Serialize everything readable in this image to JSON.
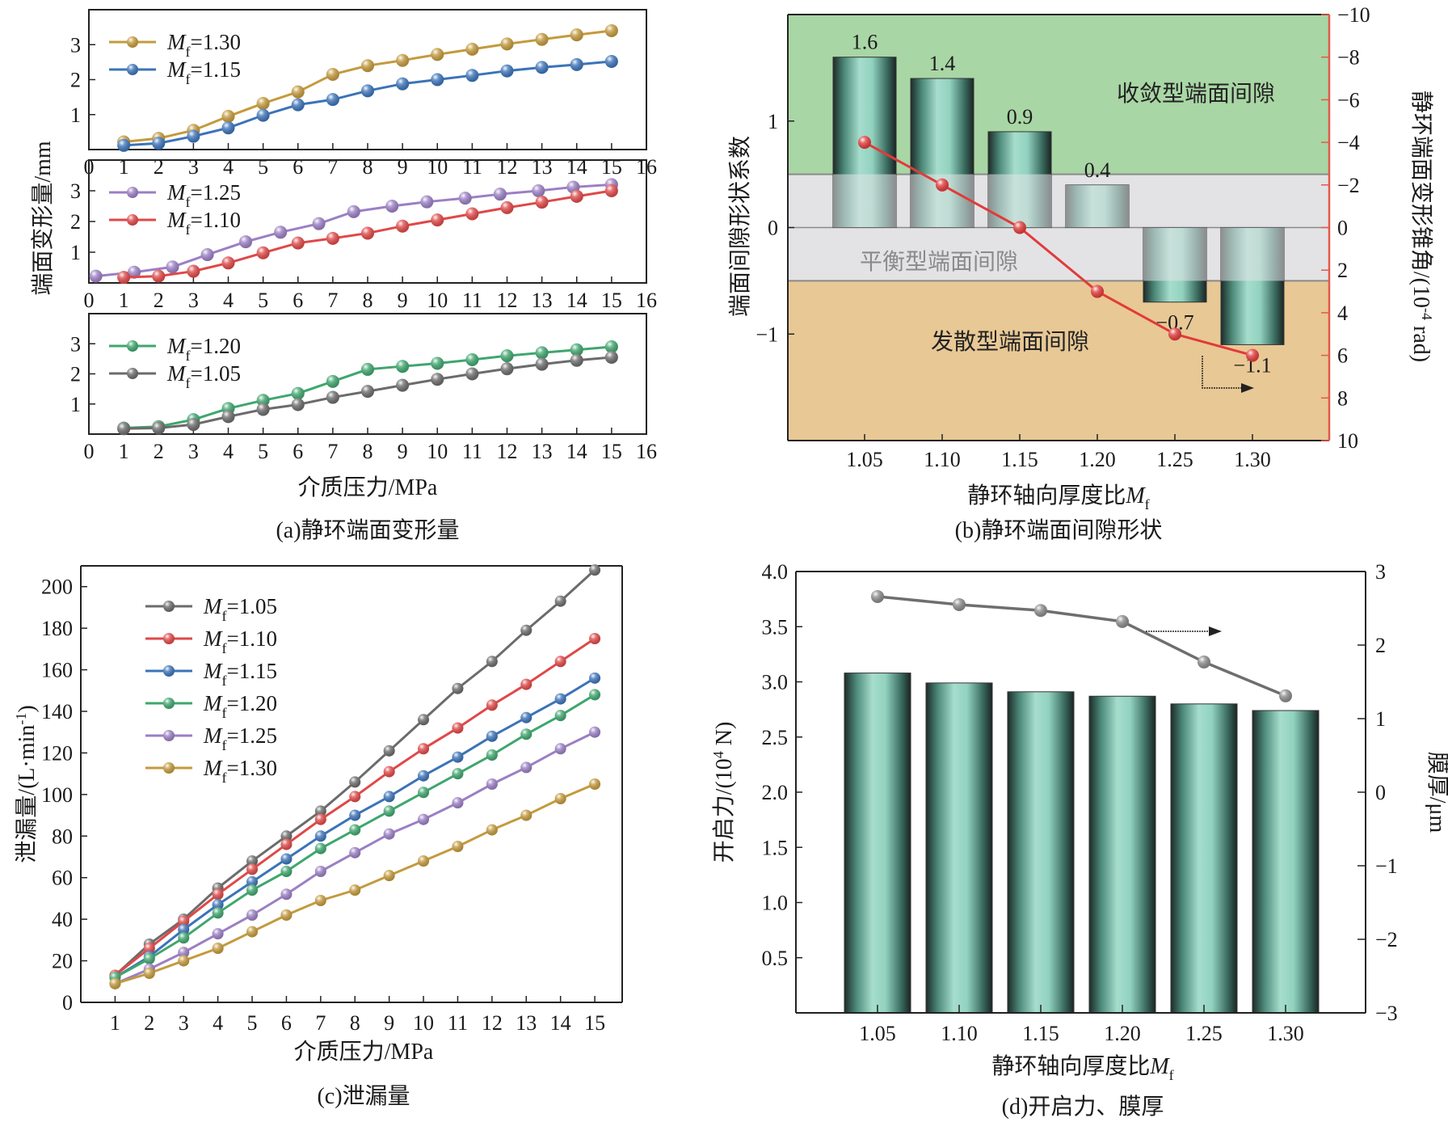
{
  "chart_data": [
    {
      "id": "a",
      "type": "line",
      "caption": "(a)静环端面变形量",
      "xlabel": "介质压力/MPa",
      "ylabel": "端面变形量/mm",
      "subplots": [
        {
          "xlim": [
            0,
            16
          ],
          "ylim": [
            0,
            4
          ],
          "xticks": [
            0,
            1,
            2,
            3,
            4,
            5,
            6,
            7,
            8,
            9,
            10,
            11,
            12,
            13,
            14,
            15,
            16
          ],
          "yticks": [
            1,
            2,
            3
          ],
          "legend": "top-left",
          "series": [
            {
              "name": "Mf=1.30",
              "label_main": "M",
              "label_sub": "f",
              "label_val": "=1.30",
              "color": "#c49a3c",
              "x": [
                1,
                2,
                3,
                4,
                5,
                6,
                7,
                8,
                9,
                10,
                11,
                12,
                13,
                14,
                15
              ],
              "y": [
                0.22,
                0.32,
                0.55,
                0.95,
                1.32,
                1.65,
                2.15,
                2.4,
                2.55,
                2.72,
                2.87,
                3.02,
                3.15,
                3.28,
                3.4
              ]
            },
            {
              "name": "Mf=1.15",
              "label_main": "M",
              "label_sub": "f",
              "label_val": "=1.15",
              "color": "#3b73b9",
              "x": [
                1,
                2,
                3,
                4,
                5,
                6,
                7,
                8,
                9,
                10,
                11,
                12,
                13,
                14,
                15
              ],
              "y": [
                0.12,
                0.18,
                0.38,
                0.62,
                0.98,
                1.28,
                1.43,
                1.68,
                1.88,
                2.0,
                2.12,
                2.25,
                2.35,
                2.43,
                2.52
              ]
            }
          ]
        },
        {
          "xlim": [
            0,
            16
          ],
          "ylim": [
            0,
            4
          ],
          "xticks": [
            0,
            1,
            2,
            3,
            4,
            5,
            6,
            7,
            8,
            9,
            10,
            11,
            12,
            13,
            14,
            15,
            16
          ],
          "yticks": [
            1,
            2,
            3
          ],
          "legend": "top-left",
          "series": [
            {
              "name": "Mf=1.25",
              "label_main": "M",
              "label_sub": "f",
              "label_val": "=1.25",
              "color": "#9b7fc4",
              "x": [
                0.2,
                1.3,
                2.4,
                3.4,
                4.5,
                5.5,
                6.6,
                7.6,
                8.7,
                9.7,
                10.8,
                11.8,
                12.9,
                13.9,
                15
              ],
              "y": [
                0.22,
                0.35,
                0.52,
                0.92,
                1.34,
                1.65,
                1.93,
                2.32,
                2.5,
                2.64,
                2.76,
                2.89,
                3.0,
                3.12,
                3.2
              ]
            },
            {
              "name": "Mf=1.10",
              "label_main": "M",
              "label_sub": "f",
              "label_val": "=1.10",
              "color": "#e04848",
              "x": [
                1,
                2,
                3,
                4,
                5,
                6,
                7,
                8,
                9,
                10,
                11,
                12,
                13,
                14,
                15
              ],
              "y": [
                0.18,
                0.22,
                0.38,
                0.65,
                0.98,
                1.3,
                1.45,
                1.62,
                1.85,
                2.05,
                2.25,
                2.45,
                2.63,
                2.82,
                3.0
              ]
            }
          ]
        },
        {
          "xlim": [
            0,
            16
          ],
          "ylim": [
            0,
            4
          ],
          "xticks": [
            0,
            1,
            2,
            3,
            4,
            5,
            6,
            7,
            8,
            9,
            10,
            11,
            12,
            13,
            14,
            15,
            16
          ],
          "yticks": [
            1,
            2,
            3
          ],
          "legend": "top-left",
          "series": [
            {
              "name": "Mf=1.20",
              "label_main": "M",
              "label_sub": "f",
              "label_val": "=1.20",
              "color": "#3fa66e",
              "x": [
                1,
                2,
                3,
                4,
                5,
                6,
                7,
                8,
                9,
                10,
                11,
                12,
                13,
                14,
                15
              ],
              "y": [
                0.2,
                0.25,
                0.48,
                0.85,
                1.12,
                1.35,
                1.75,
                2.15,
                2.25,
                2.35,
                2.47,
                2.6,
                2.7,
                2.8,
                2.9
              ]
            },
            {
              "name": "Mf=1.05",
              "label_main": "M",
              "label_sub": "f",
              "label_val": "=1.05",
              "color": "#6b6b6b",
              "x": [
                1,
                2,
                3,
                4,
                5,
                6,
                7,
                8,
                9,
                10,
                11,
                12,
                13,
                14,
                15
              ],
              "y": [
                0.18,
                0.2,
                0.32,
                0.58,
                0.82,
                0.98,
                1.22,
                1.42,
                1.62,
                1.82,
                2.0,
                2.17,
                2.32,
                2.45,
                2.55
              ]
            }
          ]
        }
      ]
    },
    {
      "id": "b",
      "type": "bar",
      "caption": "(b)静环端面间隙形状",
      "xlabel_main": "静环轴向厚度比",
      "xlabel_var": "M",
      "xlabel_sub": "f",
      "ylabel": "端面间隙形状系数",
      "ylabel_right": "静环端面变形锥角/(10",
      "ylabel_right_exp": "-4",
      "ylabel_right_unit": " rad)",
      "categories": [
        "1.05",
        "1.10",
        "1.15",
        "1.20",
        "1.25",
        "1.30"
      ],
      "xlim": [
        1.0,
        1.35
      ],
      "ylim": [
        -2,
        2
      ],
      "yticks": [
        -1,
        0,
        1
      ],
      "bar_values": [
        1.6,
        1.4,
        0.9,
        0.4,
        -0.7,
        -1.1
      ],
      "bar_labels": [
        "1.6",
        "1.4",
        "0.9",
        "0.4",
        "−0.7",
        "−1.1"
      ],
      "line_series": {
        "name": "变形锥角",
        "color": "#e23a3a",
        "values": [
          -4,
          -2,
          0,
          3,
          5,
          6
        ]
      },
      "right_ylim": [
        10,
        -10
      ],
      "right_yticks": [
        "−10",
        "−8",
        "−6",
        "−4",
        "−2",
        "0",
        "2",
        "4",
        "6",
        "8",
        "10"
      ],
      "right_ytick_values": [
        -10,
        -8,
        -6,
        -4,
        -2,
        0,
        2,
        4,
        6,
        8,
        10
      ],
      "regions": [
        {
          "label": "收敛型端面间隙",
          "from": 0.5,
          "to": 2,
          "color": "#a9d6a5"
        },
        {
          "label": "平衡型端面间隙",
          "from": -0.5,
          "to": 0.5,
          "color": "#e3e3e6"
        },
        {
          "label": "发散型端面间隙",
          "from": -2,
          "to": -0.5,
          "color": "#e8c895"
        }
      ],
      "arrow": "right"
    },
    {
      "id": "c",
      "type": "line",
      "caption": "(c)泄漏量",
      "xlabel": "介质压力/MPa",
      "ylabel": "泄漏量/(L·min",
      "ylabel_exp": "-1",
      "ylabel_end": ")",
      "xlim": [
        0,
        15.8
      ],
      "ylim": [
        0,
        210
      ],
      "xticks": [
        1,
        2,
        3,
        4,
        5,
        6,
        7,
        8,
        9,
        10,
        11,
        12,
        13,
        14,
        15
      ],
      "yticks": [
        0,
        20,
        40,
        60,
        80,
        100,
        120,
        140,
        160,
        180,
        200
      ],
      "legend": "top-left",
      "x": [
        1,
        2,
        3,
        4,
        5,
        6,
        7,
        8,
        9,
        10,
        11,
        12,
        13,
        14,
        15
      ],
      "series": [
        {
          "name": "Mf=1.05",
          "label_main": "M",
          "label_sub": "f",
          "label_val": "=1.05",
          "color": "#6b6b6b",
          "values": [
            13,
            28,
            40,
            55,
            68,
            80,
            92,
            106,
            121,
            136,
            151,
            164,
            179,
            193,
            208
          ]
        },
        {
          "name": "Mf=1.10",
          "label_main": "M",
          "label_sub": "f",
          "label_val": "=1.10",
          "color": "#e04848",
          "values": [
            13,
            26,
            39,
            52,
            64,
            76,
            88,
            99,
            111,
            122,
            132,
            143,
            153,
            164,
            175
          ]
        },
        {
          "name": "Mf=1.15",
          "label_main": "M",
          "label_sub": "f",
          "label_val": "=1.15",
          "color": "#3b73b9",
          "values": [
            12,
            22,
            35,
            47,
            58,
            69,
            80,
            90,
            99,
            109,
            118,
            128,
            137,
            146,
            156
          ]
        },
        {
          "name": "Mf=1.20",
          "label_main": "M",
          "label_sub": "f",
          "label_val": "=1.20",
          "color": "#3fa66e",
          "values": [
            12,
            21,
            31,
            43,
            54,
            63,
            74,
            83,
            92,
            101,
            110,
            119,
            129,
            138,
            148
          ]
        },
        {
          "name": "Mf=1.25",
          "label_main": "M",
          "label_sub": "f",
          "label_val": "=1.25",
          "color": "#9b7fc4",
          "values": [
            9,
            16,
            24,
            33,
            42,
            52,
            63,
            72,
            81,
            88,
            96,
            105,
            113,
            122,
            130
          ]
        },
        {
          "name": "Mf=1.30",
          "label_main": "M",
          "label_sub": "f",
          "label_val": "=1.30",
          "color": "#c49a3c",
          "values": [
            9,
            14,
            20,
            26,
            34,
            42,
            49,
            54,
            61,
            68,
            75,
            83,
            90,
            98,
            105
          ]
        }
      ]
    },
    {
      "id": "d",
      "type": "bar",
      "caption": "(d)开启力、膜厚",
      "xlabel_main": "静环轴向厚度比",
      "xlabel_var": "M",
      "xlabel_sub": "f",
      "ylabel": "开启力/(10",
      "ylabel_exp": "4",
      "ylabel_end": " N)",
      "ylabel_right": "膜厚/μm",
      "categories": [
        "1.05",
        "1.10",
        "1.15",
        "1.20",
        "1.25",
        "1.30"
      ],
      "ylim": [
        0,
        4.0
      ],
      "yticks": [
        "0.5",
        "1.0",
        "1.5",
        "2.0",
        "2.5",
        "3.0",
        "3.5",
        "4.0"
      ],
      "ytick_values": [
        0.5,
        1.0,
        1.5,
        2.0,
        2.5,
        3.0,
        3.5,
        4.0
      ],
      "bar_values": [
        3.08,
        2.99,
        2.91,
        2.87,
        2.8,
        2.74
      ],
      "line_series": {
        "name": "膜厚",
        "color": "#6e6e6e",
        "values": [
          2.66,
          2.55,
          2.47,
          2.32,
          1.77,
          1.31
        ]
      },
      "right_ylim": [
        -3,
        3
      ],
      "right_yticks": [
        "−3",
        "−2",
        "−1",
        "0",
        "1",
        "2",
        "3"
      ],
      "right_ytick_values": [
        -3,
        -2,
        -1,
        0,
        1,
        2,
        3
      ],
      "arrow": "right"
    }
  ]
}
